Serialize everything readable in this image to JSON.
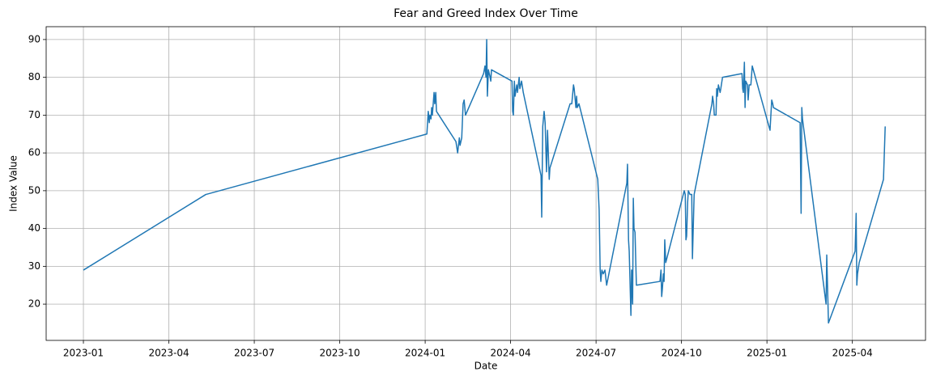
{
  "chart_data": {
    "type": "line",
    "title": "Fear and Greed Index Over Time",
    "xlabel": "Date",
    "ylabel": "Index Value",
    "color": "#1f77b4",
    "grid": true,
    "xlim": [
      2022.891,
      2025.464
    ],
    "ylim": [
      10.4,
      93.4
    ],
    "xticks": [
      {
        "value": 2023.0,
        "label": "2023-01"
      },
      {
        "value": 2023.25,
        "label": "2023-04"
      },
      {
        "value": 2023.5,
        "label": "2023-07"
      },
      {
        "value": 2023.75,
        "label": "2023-10"
      },
      {
        "value": 2024.0,
        "label": "2024-01"
      },
      {
        "value": 2024.25,
        "label": "2024-04"
      },
      {
        "value": 2024.5,
        "label": "2024-07"
      },
      {
        "value": 2024.75,
        "label": "2024-10"
      },
      {
        "value": 2025.0,
        "label": "2025-01"
      },
      {
        "value": 2025.25,
        "label": "2025-04"
      }
    ],
    "yticks": [
      20,
      30,
      40,
      50,
      60,
      70,
      80,
      90
    ],
    "x": [
      2023.0,
      2023.358,
      2024.005,
      2024.009,
      2024.012,
      2024.014,
      2024.017,
      2024.019,
      2024.021,
      2024.026,
      2024.028,
      2024.031,
      2024.033,
      2024.09,
      2024.095,
      2024.1,
      2024.102,
      2024.107,
      2024.111,
      2024.114,
      2024.118,
      2024.171,
      2024.175,
      2024.178,
      2024.18,
      2024.182,
      2024.185,
      2024.19,
      2024.192,
      2024.194,
      2024.254,
      2024.256,
      2024.258,
      2024.261,
      2024.263,
      2024.268,
      2024.27,
      2024.275,
      2024.277,
      2024.282,
      2024.287,
      2024.339,
      2024.341,
      2024.344,
      2024.348,
      2024.351,
      2024.355,
      2024.358,
      2024.363,
      2024.365,
      2024.424,
      2024.429,
      2024.434,
      2024.436,
      2024.441,
      2024.443,
      2024.445,
      2024.45,
      2024.505,
      2024.509,
      2024.512,
      2024.514,
      2024.517,
      2024.521,
      2024.526,
      2024.531,
      2024.59,
      2024.592,
      2024.595,
      2024.597,
      2024.602,
      2024.604,
      2024.607,
      2024.609,
      2024.611,
      2024.614,
      2024.618,
      2024.687,
      2024.69,
      2024.692,
      2024.694,
      2024.697,
      2024.699,
      2024.701,
      2024.704,
      2024.758,
      2024.761,
      2024.763,
      2024.765,
      2024.768,
      2024.77,
      2024.775,
      2024.78,
      2024.782,
      2024.787,
      2024.839,
      2024.841,
      2024.844,
      2024.846,
      2024.851,
      2024.853,
      2024.855,
      2024.858,
      2024.863,
      2024.865,
      2024.87,
      2024.927,
      2024.929,
      2024.931,
      2024.934,
      2024.936,
      2024.938,
      2024.943,
      2024.945,
      2024.948,
      2024.953,
      2024.957,
      2025.009,
      2025.014,
      2025.017,
      2025.019,
      2025.097,
      2025.1,
      2025.102,
      2025.104,
      2025.173,
      2025.175,
      2025.18,
      2025.258,
      2025.261,
      2025.263,
      2025.265,
      2025.27,
      2025.341,
      2025.346
    ],
    "values": [
      29,
      49,
      65,
      71,
      68,
      70,
      69,
      72,
      70,
      76,
      73,
      76,
      71,
      63,
      60,
      64,
      62,
      64,
      73,
      74,
      70,
      81,
      83,
      80,
      90,
      75,
      82,
      80,
      79,
      82,
      79,
      71,
      70,
      79,
      75,
      78,
      76,
      80,
      77,
      79,
      76,
      54,
      43,
      67,
      71,
      68,
      55,
      66,
      53,
      56,
      73,
      73,
      78,
      77,
      72,
      75,
      72,
      73,
      53,
      45,
      29,
      26,
      29,
      28,
      29,
      25,
      52,
      57,
      37,
      34,
      17,
      29,
      20,
      48,
      40,
      39,
      25,
      26,
      29,
      22,
      24,
      28,
      26,
      37,
      31,
      50,
      49,
      37,
      38,
      47,
      50,
      49,
      49,
      32,
      49,
      73,
      75,
      73,
      70,
      70,
      77,
      75,
      78,
      76,
      77,
      80,
      81,
      77,
      76,
      84,
      72,
      79,
      78,
      74,
      78,
      78,
      83,
      66,
      74,
      73,
      72,
      68,
      44,
      72,
      69,
      20,
      33,
      15,
      34,
      44,
      25,
      28,
      31,
      53,
      67
    ]
  }
}
